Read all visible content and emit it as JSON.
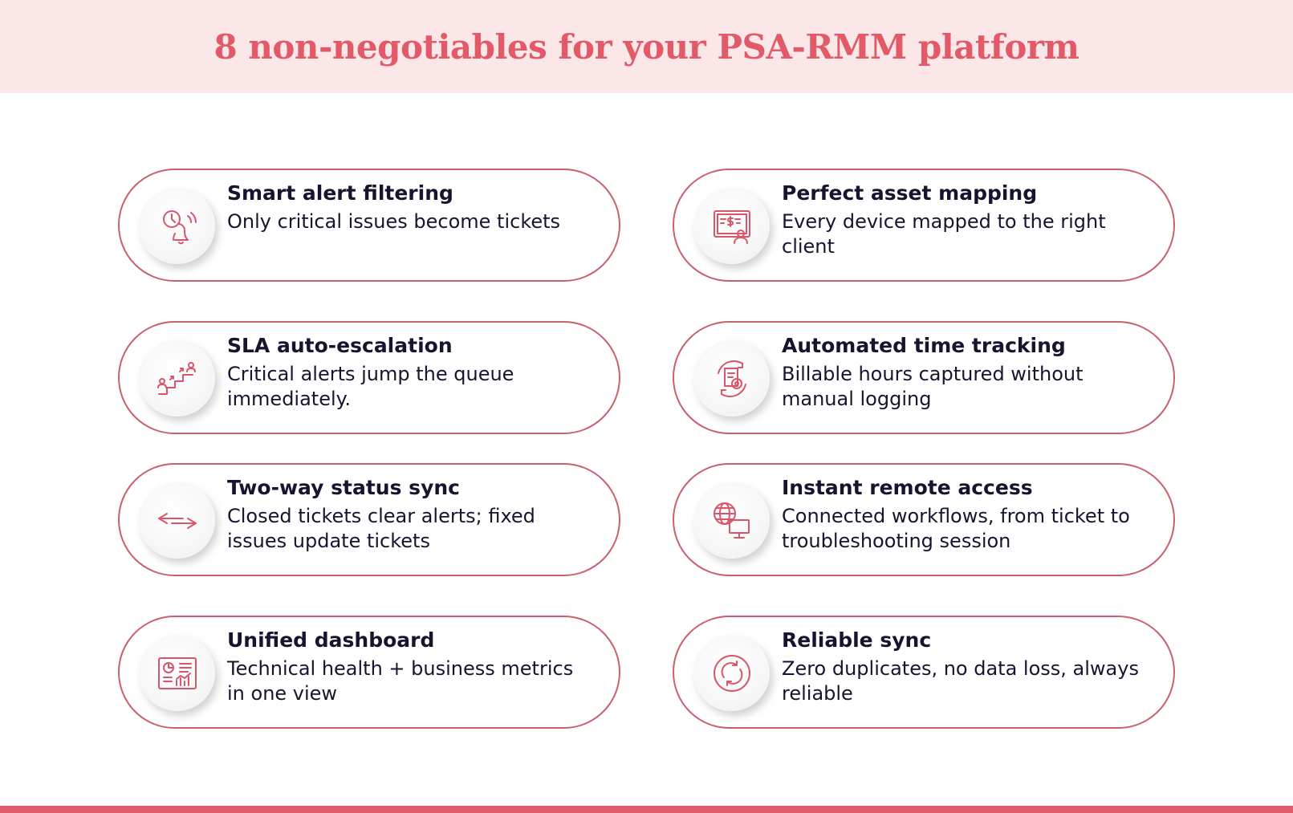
{
  "header": {
    "title": "8 non-negotiables for your PSA-RMM platform"
  },
  "colors": {
    "accent": "#e25a68",
    "header_bg": "#fbe6e8",
    "border": "#c9606e",
    "text": "#1a1330"
  },
  "cards": [
    {
      "title": "Smart alert filtering",
      "description": "Only critical issues become tickets",
      "icon": "clock-bell-icon"
    },
    {
      "title": "Perfect asset mapping",
      "description": "Every device mapped to the right client",
      "icon": "asset-card-icon"
    },
    {
      "title": "SLA auto-escalation",
      "description": "Critical alerts jump the queue immediately.",
      "icon": "escalation-stairs-icon"
    },
    {
      "title": "Automated time tracking",
      "description": "Billable hours captured without manual logging",
      "icon": "time-tracking-gear-icon"
    },
    {
      "title": "Two-way status sync",
      "description": "Closed tickets clear alerts; fixed issues update tickets",
      "icon": "two-way-arrows-icon"
    },
    {
      "title": "Instant remote access",
      "description": "Connected workflows, from ticket to troubleshooting session",
      "icon": "globe-monitor-icon"
    },
    {
      "title": "Unified dashboard",
      "description": "Technical health + business metrics in one view",
      "icon": "dashboard-icon"
    },
    {
      "title": "Reliable sync",
      "description": "Zero duplicates, no data loss, always reliable",
      "icon": "sync-cycle-icon"
    }
  ]
}
